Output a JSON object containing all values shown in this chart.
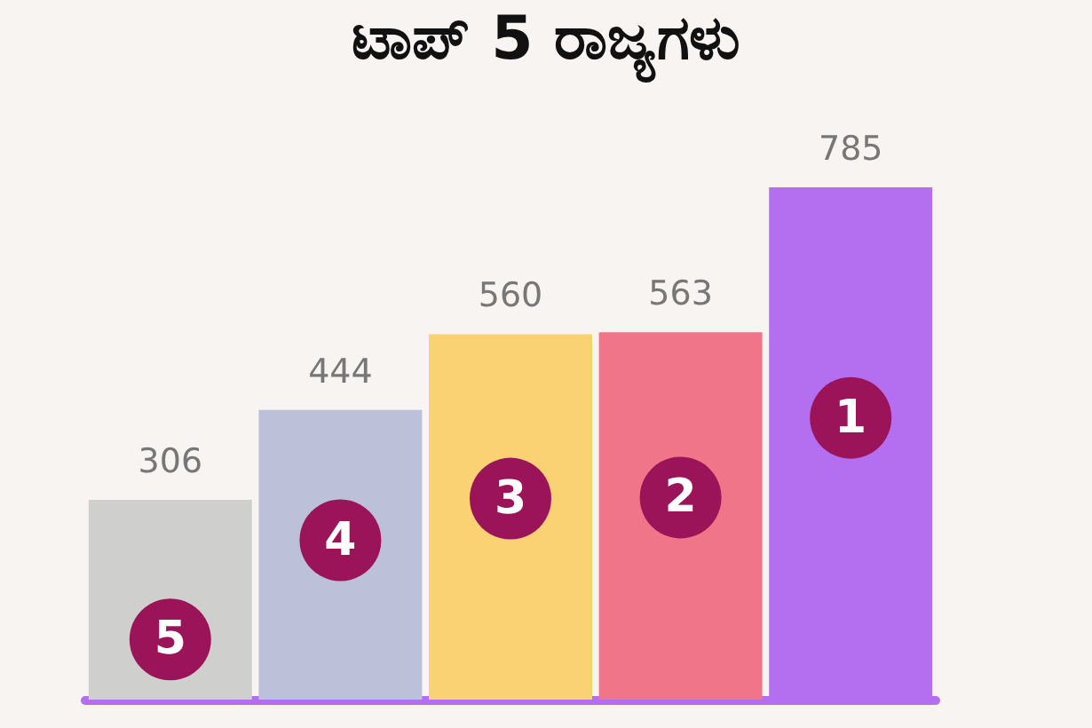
{
  "chart_data": {
    "type": "bar",
    "title": "ಟಾಪ್ 5 ರಾಜ್ಯಗಳು",
    "categories": [
      null,
      null,
      null,
      null,
      null
    ],
    "values": [
      306,
      444,
      560,
      563,
      785
    ],
    "colors": [
      "#cfcfcd",
      "#bcc0d9",
      "#fad173",
      "#f07589",
      "#b46ff0"
    ],
    "data_labels": true,
    "annotations": [
      "5",
      "4",
      "3",
      "2",
      "1"
    ]
  }
}
